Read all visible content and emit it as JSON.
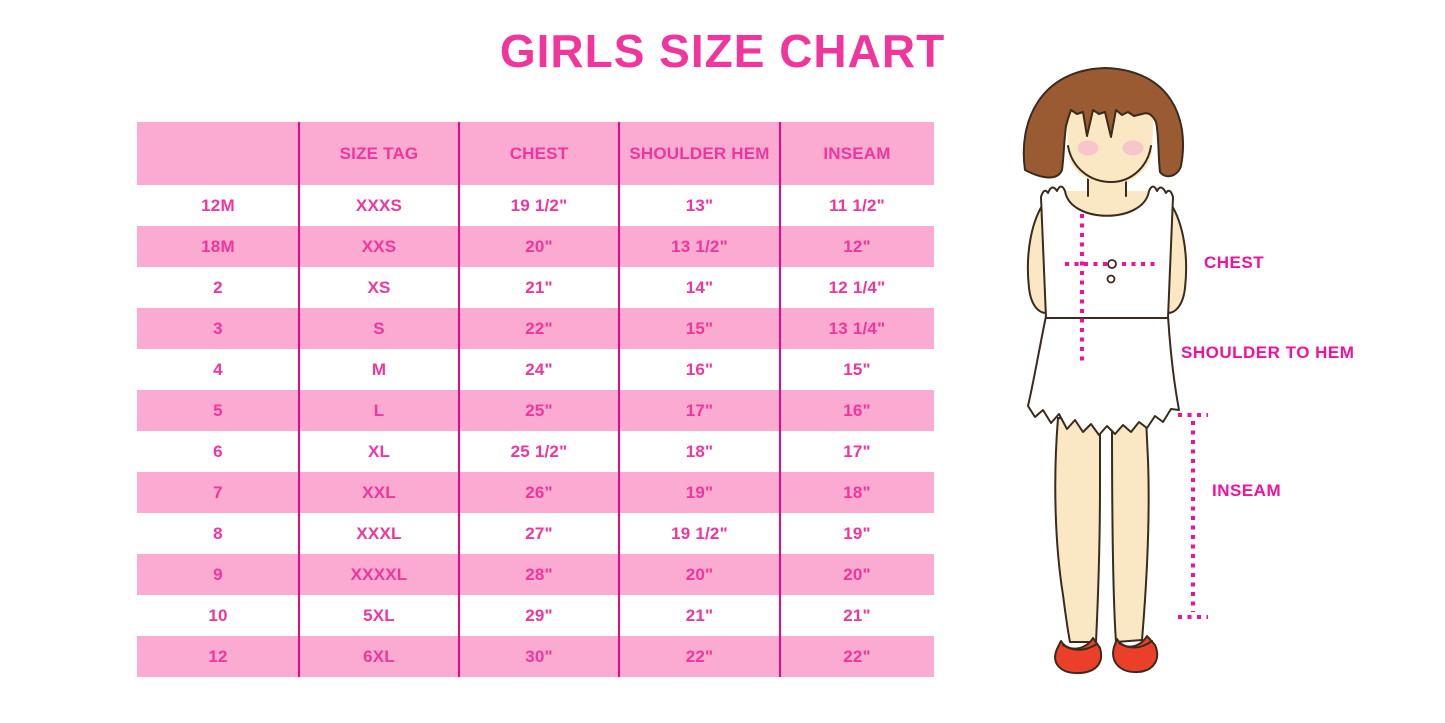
{
  "title": "GIRLS SIZE CHART",
  "table": {
    "headers": [
      "",
      "SIZE TAG",
      "CHEST",
      "SHOULDER HEM",
      "INSEAM"
    ],
    "rows": [
      [
        "12M",
        "XXXS",
        "19 1/2\"",
        "13\"",
        "11 1/2\""
      ],
      [
        "18M",
        "XXS",
        "20\"",
        "13 1/2\"",
        "12\""
      ],
      [
        "2",
        "XS",
        "21\"",
        "14\"",
        "12 1/4\""
      ],
      [
        "3",
        "S",
        "22\"",
        "15\"",
        "13 1/4\""
      ],
      [
        "4",
        "M",
        "24\"",
        "16\"",
        "15\""
      ],
      [
        "5",
        "L",
        "25\"",
        "17\"",
        "16\""
      ],
      [
        "6",
        "XL",
        "25 1/2\"",
        "18\"",
        "17\""
      ],
      [
        "7",
        "XXL",
        "26\"",
        "19\"",
        "18\""
      ],
      [
        "8",
        "XXXL",
        "27\"",
        "19 1/2\"",
        "19\""
      ],
      [
        "9",
        "XXXXL",
        "28\"",
        "20\"",
        "20\""
      ],
      [
        "10",
        "5XL",
        "29\"",
        "21\"",
        "21\""
      ],
      [
        "12",
        "6XL",
        "30\"",
        "22\"",
        "22\""
      ]
    ]
  },
  "diagram": {
    "chest_label": "CHEST",
    "shoulder_to_hem_label": "SHOULDER TO HEM",
    "inseam_label": "INSEAM"
  },
  "colors": {
    "title_pink": "#F0369C",
    "accent_pink": "#F0369C",
    "stripe_pink": "#FBAAD2",
    "divider_magenta": "#E5088E",
    "dot_magenta": "#F2109E",
    "hair_brown": "#9A5B33",
    "outline_brown": "#3A2B1D",
    "skin": "#FAE7C3",
    "cheek": "#F5BFCB",
    "shoe_red": "#EA4029",
    "garment_white": "#FFFFFF"
  }
}
